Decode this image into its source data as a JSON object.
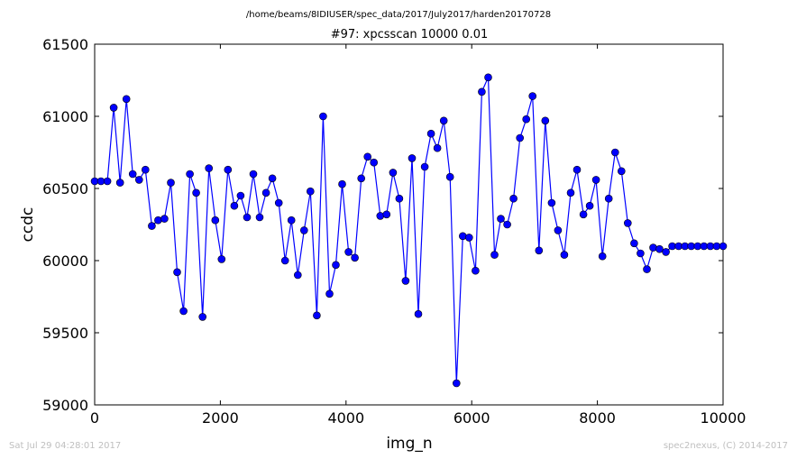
{
  "chart_data": {
    "type": "line",
    "suptitle": "/home/beams/8IDIUSER/spec_data/2017/July2017/harden20170728",
    "title": "#97: xpcsscan 10000 0.01",
    "xlabel": "img_n",
    "ylabel": "ccdc",
    "xlim": [
      0,
      10000
    ],
    "ylim": [
      59000,
      61500
    ],
    "xticks": [
      0,
      2000,
      4000,
      6000,
      8000,
      10000
    ],
    "yticks": [
      59000,
      59500,
      60000,
      60500,
      61000,
      61500
    ],
    "xtick_labels": [
      "0",
      "2000",
      "4000",
      "6000",
      "8000",
      "10000"
    ],
    "ytick_labels": [
      "59000",
      "59500",
      "60000",
      "60500",
      "61000",
      "61500"
    ],
    "grid": false,
    "legend": "none",
    "series": [
      {
        "color": "#0000ff",
        "marker": "circle",
        "x": [
          0,
          101,
          202,
          303,
          404,
          505,
          606,
          707,
          808,
          909,
          1010,
          1111,
          1212,
          1313,
          1414,
          1515,
          1616,
          1717,
          1818,
          1919,
          2020,
          2121,
          2222,
          2323,
          2424,
          2525,
          2626,
          2727,
          2828,
          2929,
          3030,
          3131,
          3232,
          3333,
          3434,
          3535,
          3636,
          3737,
          3838,
          3939,
          4040,
          4141,
          4242,
          4343,
          4444,
          4545,
          4646,
          4747,
          4848,
          4949,
          5050,
          5151,
          5252,
          5353,
          5454,
          5555,
          5656,
          5757,
          5858,
          5959,
          6060,
          6161,
          6262,
          6363,
          6464,
          6565,
          6666,
          6767,
          6868,
          6969,
          7070,
          7171,
          7272,
          7373,
          7474,
          7575,
          7676,
          7777,
          7878,
          7979,
          8080,
          8181,
          8282,
          8383,
          8484,
          8585,
          8686,
          8787,
          8888,
          8989,
          9090,
          9191,
          9292,
          9393,
          9494,
          9595,
          9696,
          9797,
          9898,
          10000
        ],
        "y": [
          60550,
          60550,
          60550,
          61060,
          60540,
          61120,
          60600,
          60560,
          60630,
          60240,
          60280,
          60290,
          60540,
          59920,
          59650,
          60600,
          60470,
          59610,
          60640,
          60280,
          60010,
          60630,
          60380,
          60450,
          60300,
          60600,
          60300,
          60470,
          60570,
          60400,
          60000,
          60280,
          59900,
          60210,
          60480,
          59620,
          61000,
          59770,
          59970,
          60530,
          60060,
          60020,
          60570,
          60720,
          60680,
          60310,
          60320,
          60610,
          60430,
          59860,
          60710,
          59630,
          60650,
          60880,
          60780,
          60970,
          60580,
          59150,
          60170,
          60160,
          59930,
          61170,
          61270,
          60040,
          60290,
          60250,
          60430,
          60850,
          60980,
          61140,
          60070,
          60970,
          60400,
          60210,
          60040,
          60470,
          60630,
          60320,
          60380,
          60560,
          60030,
          60430,
          60750,
          60620,
          60260,
          60120,
          60050,
          59940,
          60090,
          60080,
          60060,
          60100,
          60100,
          60100,
          60100,
          60100,
          60100,
          60100,
          60100,
          60100
        ]
      }
    ]
  },
  "footer": {
    "timestamp": "Sat Jul 29 04:28:01 2017",
    "credit": "spec2nexus, (C) 2014-2017"
  }
}
